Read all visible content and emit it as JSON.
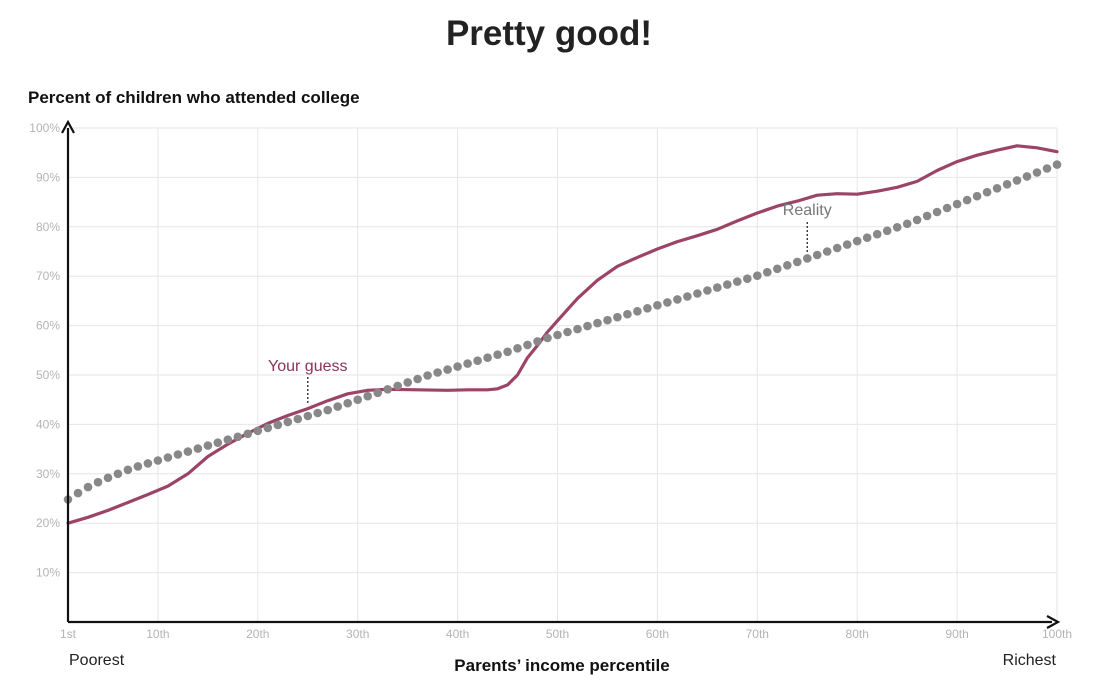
{
  "chart_data": {
    "type": "line",
    "title": "Pretty good!",
    "ylabel": "Percent of children who attended college",
    "xlabel": "Parents’ income percentile",
    "x_end_labels": {
      "left": "Poorest",
      "right": "Richest"
    },
    "xlim": [
      1,
      100
    ],
    "ylim": [
      0,
      100
    ],
    "grid": true,
    "x_ticks": [
      {
        "value": 1,
        "label": "1st"
      },
      {
        "value": 10,
        "label": "10th"
      },
      {
        "value": 20,
        "label": "20th"
      },
      {
        "value": 30,
        "label": "30th"
      },
      {
        "value": 40,
        "label": "40th"
      },
      {
        "value": 50,
        "label": "50th"
      },
      {
        "value": 60,
        "label": "60th"
      },
      {
        "value": 70,
        "label": "70th"
      },
      {
        "value": 80,
        "label": "80th"
      },
      {
        "value": 90,
        "label": "90th"
      },
      {
        "value": 100,
        "label": "100th"
      }
    ],
    "y_ticks": [
      {
        "value": 10,
        "label": "10%"
      },
      {
        "value": 20,
        "label": "20%"
      },
      {
        "value": 30,
        "label": "30%"
      },
      {
        "value": 40,
        "label": "40%"
      },
      {
        "value": 50,
        "label": "50%"
      },
      {
        "value": 60,
        "label": "60%"
      },
      {
        "value": 70,
        "label": "70%"
      },
      {
        "value": 80,
        "label": "80%"
      },
      {
        "value": 90,
        "label": "90%"
      },
      {
        "value": 100,
        "label": "100%"
      }
    ],
    "series": [
      {
        "name": "Your guess",
        "style": "line",
        "color": "#9b4467",
        "label_color": "#8a3358",
        "label_x": 25,
        "points": [
          [
            1,
            20
          ],
          [
            3,
            21.2
          ],
          [
            5,
            22.6
          ],
          [
            7,
            24.2
          ],
          [
            9,
            25.8
          ],
          [
            11,
            27.5
          ],
          [
            13,
            30
          ],
          [
            15,
            33.5
          ],
          [
            17,
            36
          ],
          [
            19,
            38.2
          ],
          [
            21,
            40.2
          ],
          [
            23,
            41.8
          ],
          [
            25,
            43.2
          ],
          [
            27,
            44.8
          ],
          [
            29,
            46.2
          ],
          [
            31,
            46.9
          ],
          [
            33,
            47.1
          ],
          [
            36,
            47
          ],
          [
            39,
            46.9
          ],
          [
            41,
            47
          ],
          [
            43,
            47
          ],
          [
            44,
            47.2
          ],
          [
            45,
            48
          ],
          [
            46,
            50
          ],
          [
            47,
            53.5
          ],
          [
            48,
            56
          ],
          [
            49,
            58.7
          ],
          [
            50,
            61
          ],
          [
            52,
            65.5
          ],
          [
            54,
            69.2
          ],
          [
            56,
            72
          ],
          [
            58,
            73.8
          ],
          [
            60,
            75.5
          ],
          [
            62,
            77
          ],
          [
            64,
            78.2
          ],
          [
            66,
            79.5
          ],
          [
            68,
            81.2
          ],
          [
            70,
            82.8
          ],
          [
            72,
            84.2
          ],
          [
            74,
            85.2
          ],
          [
            76,
            86.4
          ],
          [
            78,
            86.7
          ],
          [
            80,
            86.6
          ],
          [
            82,
            87.2
          ],
          [
            84,
            88
          ],
          [
            86,
            89.2
          ],
          [
            88,
            91.4
          ],
          [
            90,
            93.2
          ],
          [
            92,
            94.5
          ],
          [
            94,
            95.5
          ],
          [
            96,
            96.4
          ],
          [
            98,
            96
          ],
          [
            100,
            95.2
          ]
        ]
      },
      {
        "name": "Reality",
        "style": "dots",
        "color": "#888888",
        "label_color": "#777777",
        "label_x": 75,
        "x": [
          1,
          2,
          3,
          4,
          5,
          6,
          7,
          8,
          9,
          10,
          11,
          12,
          13,
          14,
          15,
          16,
          17,
          18,
          19,
          20,
          21,
          22,
          23,
          24,
          25,
          26,
          27,
          28,
          29,
          30,
          31,
          32,
          33,
          34,
          35,
          36,
          37,
          38,
          39,
          40,
          41,
          42,
          43,
          44,
          45,
          46,
          47,
          48,
          49,
          50,
          51,
          52,
          53,
          54,
          55,
          56,
          57,
          58,
          59,
          60,
          61,
          62,
          63,
          64,
          65,
          66,
          67,
          68,
          69,
          70,
          71,
          72,
          73,
          74,
          75,
          76,
          77,
          78,
          79,
          80,
          81,
          82,
          83,
          84,
          85,
          86,
          87,
          88,
          89,
          90,
          91,
          92,
          93,
          94,
          95,
          96,
          97,
          98,
          99,
          100
        ],
        "values": [
          24.8,
          26.1,
          27.3,
          28.3,
          29.2,
          30,
          30.8,
          31.5,
          32.1,
          32.7,
          33.3,
          33.9,
          34.5,
          35.1,
          35.7,
          36.3,
          36.9,
          37.5,
          38.1,
          38.7,
          39.3,
          39.9,
          40.5,
          41.1,
          41.7,
          42.3,
          42.9,
          43.6,
          44.3,
          45,
          45.7,
          46.4,
          47.1,
          47.8,
          48.5,
          49.2,
          49.9,
          50.5,
          51.1,
          51.7,
          52.3,
          52.9,
          53.5,
          54.1,
          54.7,
          55.4,
          56.1,
          56.8,
          57.5,
          58.1,
          58.7,
          59.3,
          59.9,
          60.5,
          61.1,
          61.7,
          62.3,
          62.9,
          63.5,
          64.1,
          64.7,
          65.3,
          65.9,
          66.5,
          67.1,
          67.7,
          68.3,
          68.9,
          69.5,
          70.1,
          70.8,
          71.5,
          72.2,
          72.9,
          73.6,
          74.3,
          75,
          75.7,
          76.4,
          77.1,
          77.8,
          78.5,
          79.2,
          79.9,
          80.6,
          81.4,
          82.2,
          83,
          83.8,
          84.6,
          85.4,
          86.2,
          87,
          87.8,
          88.6,
          89.4,
          90.2,
          91,
          91.8,
          92.6
        ]
      }
    ]
  }
}
